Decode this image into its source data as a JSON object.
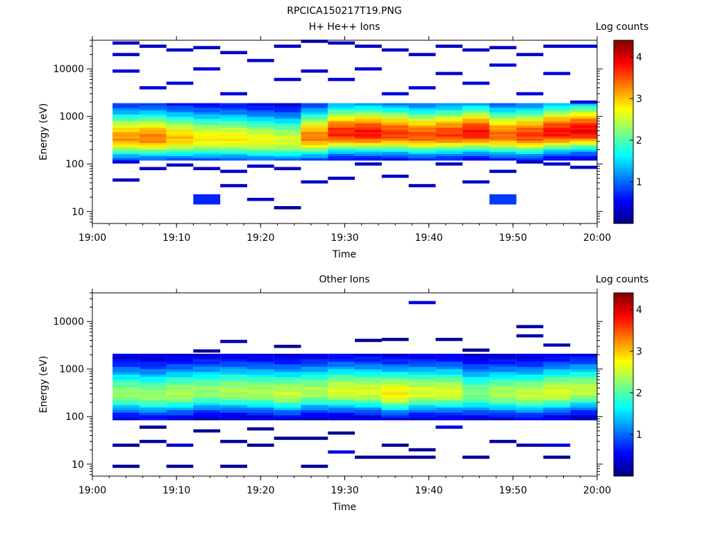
{
  "page_title": "RPCICA150217T19.PNG",
  "colormap": [
    "#00007f",
    "#0000ff",
    "#007fff",
    "#00ffff",
    "#7fff7f",
    "#ffff00",
    "#ff7f00",
    "#ff0000",
    "#7f0000"
  ],
  "chart_data": [
    {
      "type": "heatmap",
      "title": "H+ He++ Ions",
      "xlabel": "Time",
      "ylabel": "Energy (eV)",
      "x_ticks": [
        "19:00",
        "19:10",
        "19:20",
        "19:30",
        "19:40",
        "19:50",
        "20:00"
      ],
      "x_range_minutes": [
        0,
        60
      ],
      "y_scale": "log",
      "y_ticks": [
        "10",
        "100",
        "1000",
        "10000"
      ],
      "y_range_eV": [
        5.6,
        40000
      ],
      "colorbar": {
        "label": "Log counts",
        "ticks": [
          "1",
          "2",
          "3",
          "4"
        ],
        "range": [
          0,
          4.4
        ]
      },
      "time_bin_starts_minutes": [
        2.4,
        5.6,
        8.8,
        12.0,
        15.2,
        18.4,
        21.6,
        24.8,
        28.0,
        31.2,
        34.4,
        37.6,
        40.8,
        44.0,
        47.2,
        50.4,
        53.6,
        56.8
      ],
      "bin_width_minutes": 3.2,
      "core": {
        "energy_range_eV": [
          120,
          1900
        ],
        "peak_energy_eV": [
          350,
          350,
          340,
          330,
          330,
          310,
          300,
          360,
          440,
          440,
          430,
          400,
          420,
          450,
          400,
          400,
          460,
          490
        ],
        "peak_log_counts": [
          3.2,
          3.3,
          3.0,
          2.8,
          2.8,
          2.7,
          2.6,
          3.3,
          3.7,
          3.8,
          3.6,
          3.5,
          3.6,
          3.8,
          3.4,
          3.6,
          3.8,
          3.9
        ]
      },
      "sparse_cells": [
        [
          0,
          46,
          0.3
        ],
        [
          0,
          110,
          0.4
        ],
        [
          0,
          9000,
          0.4
        ],
        [
          0,
          20000,
          0.3
        ],
        [
          0,
          35000,
          0.3
        ],
        [
          1,
          80,
          0.3
        ],
        [
          1,
          4000,
          0.4
        ],
        [
          1,
          30000,
          0.3
        ],
        [
          2,
          95,
          0.3
        ],
        [
          2,
          5000,
          0.4
        ],
        [
          2,
          25000,
          0.3
        ],
        [
          3,
          18,
          0.7
        ],
        [
          3,
          80,
          0.3
        ],
        [
          3,
          10000,
          0.4
        ],
        [
          3,
          28000,
          0.3
        ],
        [
          4,
          35,
          0.3
        ],
        [
          4,
          70,
          0.3
        ],
        [
          4,
          3000,
          0.4
        ],
        [
          4,
          22000,
          0.3
        ],
        [
          5,
          18,
          0.3
        ],
        [
          5,
          90,
          0.3
        ],
        [
          5,
          15000,
          0.4
        ],
        [
          6,
          12,
          0.2
        ],
        [
          6,
          80,
          0.3
        ],
        [
          6,
          6000,
          0.4
        ],
        [
          6,
          30000,
          0.3
        ],
        [
          7,
          42,
          0.3
        ],
        [
          7,
          9000,
          0.3
        ],
        [
          7,
          38000,
          0.3
        ],
        [
          8,
          50,
          0.3
        ],
        [
          8,
          6000,
          0.4
        ],
        [
          8,
          35000,
          0.3
        ],
        [
          9,
          100,
          0.3
        ],
        [
          9,
          10000,
          0.4
        ],
        [
          9,
          30000,
          0.3
        ],
        [
          10,
          55,
          0.3
        ],
        [
          10,
          3000,
          0.4
        ],
        [
          10,
          25000,
          0.3
        ],
        [
          11,
          35,
          0.3
        ],
        [
          11,
          4000,
          0.4
        ],
        [
          11,
          20000,
          0.3
        ],
        [
          12,
          100,
          0.3
        ],
        [
          12,
          8000,
          0.4
        ],
        [
          12,
          30000,
          0.3
        ],
        [
          13,
          42,
          0.3
        ],
        [
          13,
          5000,
          0.4
        ],
        [
          13,
          25000,
          0.3
        ],
        [
          14,
          18,
          0.8
        ],
        [
          14,
          70,
          0.3
        ],
        [
          14,
          12000,
          0.4
        ],
        [
          14,
          28000,
          0.3
        ],
        [
          15,
          110,
          0.3
        ],
        [
          15,
          3000,
          0.4
        ],
        [
          15,
          20000,
          0.3
        ],
        [
          16,
          100,
          0.3
        ],
        [
          16,
          8000,
          0.4
        ],
        [
          16,
          30000,
          0.3
        ],
        [
          17,
          85,
          0.3
        ],
        [
          17,
          2000,
          0.4
        ],
        [
          17,
          30000,
          0.4
        ]
      ]
    },
    {
      "type": "heatmap",
      "title": "Other Ions",
      "xlabel": "Time",
      "ylabel": "Energy (eV)",
      "x_ticks": [
        "19:00",
        "19:10",
        "19:20",
        "19:30",
        "19:40",
        "19:50",
        "20:00"
      ],
      "x_range_minutes": [
        0,
        60
      ],
      "y_scale": "log",
      "y_ticks": [
        "10",
        "100",
        "1000",
        "10000"
      ],
      "y_range_eV": [
        5.6,
        40000
      ],
      "colorbar": {
        "label": "Log counts",
        "ticks": [
          "1",
          "2",
          "3",
          "4"
        ],
        "range": [
          0,
          4.4
        ]
      },
      "time_bin_starts_minutes": [
        2.4,
        5.6,
        8.8,
        12.0,
        15.2,
        18.4,
        21.6,
        24.8,
        28.0,
        31.2,
        34.4,
        37.6,
        40.8,
        44.0,
        47.2,
        50.4,
        53.6,
        56.8
      ],
      "bin_width_minutes": 3.2,
      "core": {
        "energy_range_eV": [
          85,
          2100
        ],
        "peak_energy_eV": [
          300,
          280,
          300,
          330,
          330,
          320,
          300,
          330,
          340,
          330,
          300,
          320,
          320,
          300,
          300,
          290,
          320,
          350
        ],
        "peak_log_counts": [
          2.3,
          2.3,
          2.4,
          2.3,
          2.4,
          2.4,
          2.5,
          2.4,
          2.6,
          2.6,
          2.8,
          2.6,
          2.6,
          2.2,
          2.4,
          2.5,
          2.6,
          2.5
        ]
      },
      "sparse_cells": [
        [
          0,
          9,
          0.1
        ],
        [
          0,
          25,
          0.1
        ],
        [
          1,
          30,
          0.1
        ],
        [
          1,
          60,
          0.1
        ],
        [
          2,
          9,
          0.1
        ],
        [
          2,
          25,
          0.4
        ],
        [
          3,
          50,
          0.1
        ],
        [
          3,
          2400,
          0.1
        ],
        [
          4,
          9,
          0.1
        ],
        [
          4,
          30,
          0.1
        ],
        [
          4,
          3800,
          0.2
        ],
        [
          5,
          25,
          0.1
        ],
        [
          5,
          55,
          0.1
        ],
        [
          6,
          35,
          0.1
        ],
        [
          6,
          3000,
          0.1
        ],
        [
          7,
          9,
          0.1
        ],
        [
          7,
          35,
          0.1
        ],
        [
          8,
          18,
          0.4
        ],
        [
          8,
          45,
          0.1
        ],
        [
          9,
          14,
          0.1
        ],
        [
          9,
          4000,
          0.1
        ],
        [
          10,
          14,
          0.1
        ],
        [
          10,
          25,
          0.1
        ],
        [
          10,
          4200,
          0.1
        ],
        [
          11,
          14,
          0.1
        ],
        [
          11,
          20,
          0.1
        ],
        [
          11,
          25000,
          0.4
        ],
        [
          12,
          60,
          0.5
        ],
        [
          12,
          4200,
          0.1
        ],
        [
          13,
          14,
          0.1
        ],
        [
          13,
          2500,
          0.1
        ],
        [
          14,
          30,
          0.1
        ],
        [
          15,
          25,
          0.2
        ],
        [
          15,
          5000,
          0.2
        ],
        [
          15,
          7800,
          0.2
        ],
        [
          16,
          14,
          0.1
        ],
        [
          16,
          25,
          0.4
        ],
        [
          16,
          3200,
          0.2
        ]
      ]
    }
  ]
}
